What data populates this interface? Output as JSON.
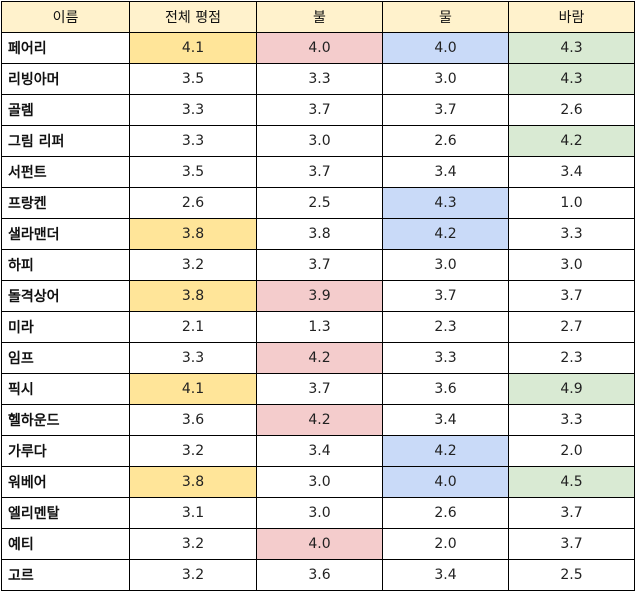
{
  "highlight_colors": {
    "yellow": "#ffe599",
    "red": "#f4cccc",
    "blue": "#c9daf8",
    "green": "#d9ead3",
    "header": "#fff2cc"
  },
  "headers": [
    "이름",
    "전체 평점",
    "불",
    "물",
    "바람"
  ],
  "rows": [
    {
      "name": "페어리",
      "values": [
        "4.1",
        "4.0",
        "4.0",
        "4.3"
      ],
      "highlights": [
        "yellow",
        "red",
        "blue",
        "green"
      ]
    },
    {
      "name": "리빙아머",
      "values": [
        "3.5",
        "3.3",
        "3.0",
        "4.3"
      ],
      "highlights": [
        "",
        "",
        "",
        "green"
      ]
    },
    {
      "name": "골렘",
      "values": [
        "3.3",
        "3.7",
        "3.7",
        "2.6"
      ],
      "highlights": [
        "",
        "",
        "",
        ""
      ]
    },
    {
      "name": "그림 리퍼",
      "values": [
        "3.3",
        "3.0",
        "2.6",
        "4.2"
      ],
      "highlights": [
        "",
        "",
        "",
        "green"
      ]
    },
    {
      "name": "서펀트",
      "values": [
        "3.5",
        "3.7",
        "3.4",
        "3.4"
      ],
      "highlights": [
        "",
        "",
        "",
        ""
      ]
    },
    {
      "name": "프랑켄",
      "values": [
        "2.6",
        "2.5",
        "4.3",
        "1.0"
      ],
      "highlights": [
        "",
        "",
        "blue",
        ""
      ]
    },
    {
      "name": "샐라맨더",
      "values": [
        "3.8",
        "3.8",
        "4.2",
        "3.3"
      ],
      "highlights": [
        "yellow",
        "",
        "blue",
        ""
      ]
    },
    {
      "name": "하피",
      "values": [
        "3.2",
        "3.7",
        "3.0",
        "3.0"
      ],
      "highlights": [
        "",
        "",
        "",
        ""
      ]
    },
    {
      "name": "돌격상어",
      "values": [
        "3.8",
        "3.9",
        "3.7",
        "3.7"
      ],
      "highlights": [
        "yellow",
        "red",
        "",
        ""
      ]
    },
    {
      "name": "미라",
      "values": [
        "2.1",
        "1.3",
        "2.3",
        "2.7"
      ],
      "highlights": [
        "",
        "",
        "",
        ""
      ]
    },
    {
      "name": "임프",
      "values": [
        "3.3",
        "4.2",
        "3.3",
        "2.3"
      ],
      "highlights": [
        "",
        "red",
        "",
        ""
      ]
    },
    {
      "name": "픽시",
      "values": [
        "4.1",
        "3.7",
        "3.6",
        "4.9"
      ],
      "highlights": [
        "yellow",
        "",
        "",
        "green"
      ]
    },
    {
      "name": "헬하운드",
      "values": [
        "3.6",
        "4.2",
        "3.4",
        "3.3"
      ],
      "highlights": [
        "",
        "red",
        "",
        ""
      ]
    },
    {
      "name": "가루다",
      "values": [
        "3.2",
        "3.4",
        "4.2",
        "2.0"
      ],
      "highlights": [
        "",
        "",
        "blue",
        ""
      ]
    },
    {
      "name": "워베어",
      "values": [
        "3.8",
        "3.0",
        "4.0",
        "4.5"
      ],
      "highlights": [
        "yellow",
        "",
        "blue",
        "green"
      ]
    },
    {
      "name": "엘리멘탈",
      "values": [
        "3.1",
        "3.0",
        "2.6",
        "3.7"
      ],
      "highlights": [
        "",
        "",
        "",
        ""
      ]
    },
    {
      "name": "예티",
      "values": [
        "3.2",
        "4.0",
        "2.0",
        "3.7"
      ],
      "highlights": [
        "",
        "red",
        "",
        ""
      ]
    },
    {
      "name": "고르",
      "values": [
        "3.2",
        "3.6",
        "3.4",
        "2.5"
      ],
      "highlights": [
        "",
        "",
        "",
        ""
      ]
    }
  ]
}
